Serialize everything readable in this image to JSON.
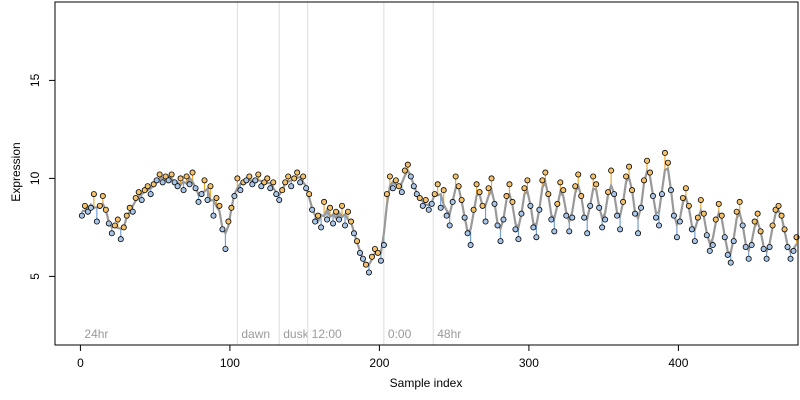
{
  "chart_data": {
    "type": "scatter",
    "title": "",
    "xlabel": "Sample index",
    "ylabel": "Expression",
    "xlim": [
      -17,
      480
    ],
    "ylim": [
      1.5,
      19
    ],
    "x_ticks": [
      0,
      100,
      200,
      300,
      400
    ],
    "y_ticks": [
      5,
      10,
      15
    ],
    "grid": false,
    "legend": "none",
    "colors": {
      "point_high": "#f5c26b",
      "point_low": "#a9c6e8",
      "point_stroke": "#000000",
      "fit_line": "#999999",
      "fill_above": "#f0a830",
      "fill_below": "#6f9fd8",
      "segment_line": "#dddddd",
      "segment_text": "#9a9a9a"
    },
    "segments": [
      {
        "x": 0,
        "label": "24hr"
      },
      {
        "x": 105,
        "label": "dawn"
      },
      {
        "x": 133,
        "label": "dusk"
      },
      {
        "x": 152,
        "label": "12:00"
      },
      {
        "x": 203,
        "label": "0:00"
      },
      {
        "x": 236,
        "label": "48hr"
      }
    ],
    "series": [
      {
        "values": [
          [
            1,
            8.1
          ],
          [
            3,
            8.6
          ],
          [
            5,
            8.3
          ],
          [
            7,
            8.5
          ],
          [
            9,
            9.2
          ],
          [
            11,
            7.8
          ],
          [
            13,
            8.6
          ],
          [
            15,
            9.1
          ],
          [
            17,
            8.4
          ],
          [
            19,
            7.7
          ],
          [
            21,
            7.2
          ],
          [
            23,
            7.6
          ],
          [
            25,
            7.9
          ],
          [
            27,
            6.9
          ],
          [
            29,
            7.5
          ],
          [
            31,
            8.1
          ],
          [
            33,
            8.5
          ],
          [
            35,
            8.3
          ],
          [
            37,
            9.0
          ],
          [
            39,
            9.3
          ],
          [
            41,
            8.9
          ],
          [
            43,
            9.4
          ],
          [
            45,
            9.6
          ],
          [
            47,
            9.2
          ],
          [
            49,
            9.7
          ],
          [
            51,
            9.9
          ],
          [
            53,
            10.2
          ],
          [
            55,
            9.8
          ],
          [
            57,
            10.1
          ],
          [
            59,
            9.9
          ],
          [
            61,
            10.2
          ],
          [
            63,
            9.8
          ],
          [
            65,
            9.6
          ],
          [
            67,
            10.0
          ],
          [
            69,
            9.4
          ],
          [
            71,
            10.1
          ],
          [
            73,
            9.7
          ],
          [
            75,
            10.3
          ],
          [
            77,
            9.5
          ],
          [
            79,
            8.8
          ],
          [
            81,
            9.2
          ],
          [
            83,
            9.9
          ],
          [
            85,
            8.9
          ],
          [
            87,
            9.6
          ],
          [
            89,
            8.1
          ],
          [
            91,
            9.0
          ],
          [
            93,
            8.6
          ],
          [
            95,
            7.4
          ],
          [
            97,
            6.4
          ],
          [
            99,
            7.8
          ],
          [
            101,
            8.5
          ],
          [
            103,
            9.1
          ],
          [
            105,
            10.0
          ],
          [
            107,
            9.4
          ],
          [
            109,
            9.8
          ],
          [
            111,
            9.9
          ],
          [
            113,
            10.1
          ],
          [
            115,
            9.7
          ],
          [
            117,
            9.9
          ],
          [
            119,
            10.2
          ],
          [
            121,
            9.6
          ],
          [
            123,
            9.8
          ],
          [
            125,
            10.0
          ],
          [
            127,
            9.5
          ],
          [
            129,
            9.8
          ],
          [
            131,
            9.2
          ],
          [
            133,
            8.9
          ],
          [
            135,
            9.4
          ],
          [
            137,
            9.8
          ],
          [
            139,
            10.1
          ],
          [
            141,
            9.6
          ],
          [
            143,
            10.0
          ],
          [
            145,
            10.3
          ],
          [
            147,
            9.8
          ],
          [
            149,
            10.1
          ],
          [
            151,
            9.5
          ],
          [
            153,
            9.2
          ],
          [
            155,
            8.4
          ],
          [
            157,
            7.8
          ],
          [
            159,
            8.1
          ],
          [
            161,
            7.5
          ],
          [
            163,
            8.8
          ],
          [
            165,
            7.9
          ],
          [
            167,
            8.5
          ],
          [
            169,
            7.7
          ],
          [
            171,
            8.3
          ],
          [
            173,
            7.9
          ],
          [
            175,
            8.6
          ],
          [
            177,
            7.6
          ],
          [
            179,
            8.3
          ],
          [
            181,
            7.8
          ],
          [
            183,
            7.2
          ],
          [
            185,
            6.8
          ],
          [
            187,
            6.2
          ],
          [
            189,
            5.9
          ],
          [
            191,
            5.6
          ],
          [
            193,
            5.2
          ],
          [
            195,
            6.0
          ],
          [
            197,
            6.4
          ],
          [
            199,
            6.2
          ],
          [
            201,
            5.8
          ],
          [
            203,
            6.6
          ],
          [
            205,
            9.2
          ],
          [
            207,
            10.1
          ],
          [
            209,
            9.5
          ],
          [
            211,
            9.9
          ],
          [
            213,
            9.6
          ],
          [
            215,
            9.3
          ],
          [
            217,
            10.4
          ],
          [
            219,
            10.7
          ],
          [
            221,
            10.1
          ],
          [
            223,
            9.6
          ],
          [
            225,
            9.2
          ],
          [
            227,
            9.0
          ],
          [
            229,
            8.6
          ],
          [
            231,
            8.9
          ],
          [
            233,
            8.4
          ],
          [
            235,
            8.7
          ],
          [
            237,
            9.2
          ],
          [
            239,
            9.7
          ],
          [
            241,
            8.5
          ],
          [
            243,
            9.4
          ],
          [
            245,
            8.1
          ],
          [
            247,
            7.6
          ],
          [
            249,
            8.8
          ],
          [
            251,
            10.1
          ],
          [
            253,
            9.6
          ],
          [
            255,
            8.9
          ],
          [
            257,
            8.0
          ],
          [
            259,
            7.2
          ],
          [
            261,
            6.6
          ],
          [
            263,
            8.4
          ],
          [
            265,
            9.7
          ],
          [
            267,
            9.3
          ],
          [
            269,
            8.6
          ],
          [
            271,
            7.8
          ],
          [
            273,
            9.5
          ],
          [
            275,
            10.0
          ],
          [
            277,
            8.7
          ],
          [
            279,
            7.6
          ],
          [
            281,
            6.8
          ],
          [
            283,
            7.9
          ],
          [
            285,
            9.1
          ],
          [
            287,
            9.7
          ],
          [
            289,
            8.8
          ],
          [
            291,
            7.4
          ],
          [
            293,
            6.9
          ],
          [
            295,
            8.2
          ],
          [
            297,
            9.5
          ],
          [
            299,
            9.9
          ],
          [
            301,
            8.6
          ],
          [
            303,
            7.5
          ],
          [
            305,
            7.0
          ],
          [
            307,
            8.4
          ],
          [
            309,
            9.9
          ],
          [
            311,
            10.3
          ],
          [
            313,
            9.2
          ],
          [
            315,
            7.9
          ],
          [
            317,
            7.3
          ],
          [
            319,
            8.7
          ],
          [
            321,
            9.8
          ],
          [
            323,
            9.4
          ],
          [
            325,
            8.1
          ],
          [
            327,
            7.3
          ],
          [
            329,
            8.0
          ],
          [
            331,
            9.6
          ],
          [
            333,
            10.2
          ],
          [
            335,
            9.1
          ],
          [
            337,
            8.0
          ],
          [
            339,
            7.2
          ],
          [
            341,
            8.6
          ],
          [
            343,
            10.1
          ],
          [
            345,
            9.7
          ],
          [
            347,
            8.5
          ],
          [
            349,
            7.5
          ],
          [
            351,
            7.9
          ],
          [
            353,
            9.3
          ],
          [
            355,
            10.4
          ],
          [
            357,
            9.2
          ],
          [
            359,
            8.1
          ],
          [
            361,
            7.4
          ],
          [
            363,
            8.8
          ],
          [
            365,
            10.1
          ],
          [
            367,
            10.6
          ],
          [
            369,
            9.4
          ],
          [
            371,
            8.2
          ],
          [
            373,
            7.2
          ],
          [
            375,
            8.5
          ],
          [
            377,
            9.9
          ],
          [
            379,
            10.9
          ],
          [
            381,
            10.3
          ],
          [
            383,
            9.1
          ],
          [
            385,
            8.0
          ],
          [
            387,
            7.6
          ],
          [
            389,
            9.2
          ],
          [
            391,
            11.3
          ],
          [
            393,
            10.8
          ],
          [
            395,
            9.4
          ],
          [
            397,
            8.1
          ],
          [
            399,
            7.0
          ],
          [
            401,
            7.8
          ],
          [
            403,
            9.0
          ],
          [
            405,
            9.5
          ],
          [
            407,
            8.6
          ],
          [
            409,
            7.4
          ],
          [
            411,
            6.8
          ],
          [
            413,
            8.0
          ],
          [
            415,
            8.9
          ],
          [
            417,
            8.2
          ],
          [
            419,
            7.1
          ],
          [
            421,
            6.3
          ],
          [
            423,
            6.6
          ],
          [
            425,
            7.9
          ],
          [
            427,
            8.7
          ],
          [
            429,
            8.1
          ],
          [
            431,
            7.0
          ],
          [
            433,
            6.1
          ],
          [
            435,
            5.7
          ],
          [
            437,
            6.8
          ],
          [
            439,
            8.3
          ],
          [
            441,
            8.8
          ],
          [
            443,
            7.6
          ],
          [
            445,
            6.5
          ],
          [
            447,
            5.9
          ],
          [
            449,
            6.6
          ],
          [
            451,
            7.8
          ],
          [
            453,
            8.2
          ],
          [
            455,
            7.3
          ],
          [
            457,
            6.4
          ],
          [
            459,
            5.9
          ],
          [
            461,
            6.5
          ],
          [
            463,
            7.6
          ],
          [
            465,
            8.4
          ],
          [
            467,
            8.6
          ],
          [
            469,
            8.1
          ],
          [
            471,
            7.4
          ],
          [
            473,
            6.5
          ],
          [
            475,
            5.9
          ],
          [
            477,
            6.3
          ],
          [
            479,
            7.0
          ]
        ]
      }
    ]
  }
}
